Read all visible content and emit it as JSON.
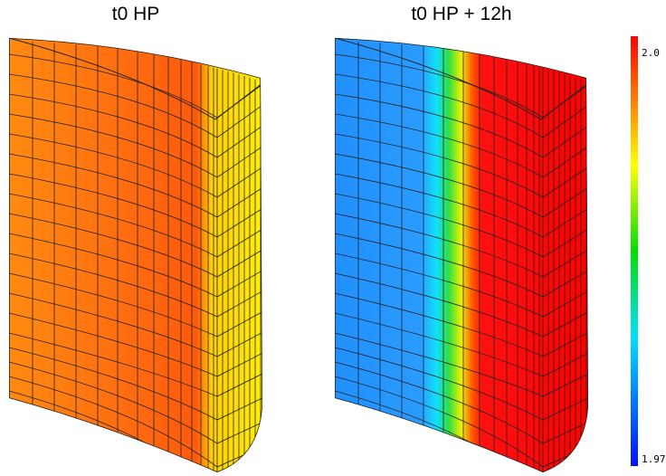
{
  "panels": [
    {
      "title": "t0 HP"
    },
    {
      "title": "t0 HP + 12h"
    }
  ],
  "colorbar": {
    "max_label": "2.0",
    "min_label": "1.97"
  }
}
